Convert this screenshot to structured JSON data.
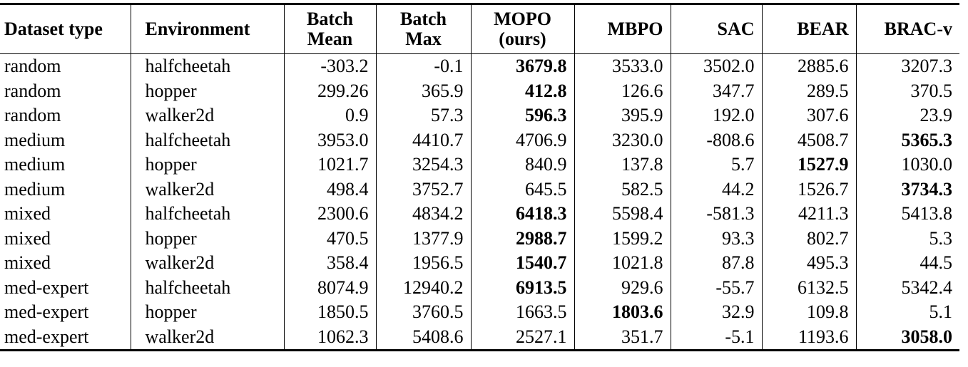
{
  "table": {
    "header": [
      [
        "Dataset type"
      ],
      [
        "Environment"
      ],
      [
        "Batch",
        "Mean"
      ],
      [
        "Batch",
        "Max"
      ],
      [
        "MOPO",
        "(ours)"
      ],
      [
        "MBPO"
      ],
      [
        "SAC"
      ],
      [
        "BEAR"
      ],
      [
        "BRAC-v"
      ]
    ],
    "rows": [
      [
        "random",
        "halfcheetah",
        "-303.2",
        "-0.1",
        "3679.8",
        "3533.0",
        "3502.0",
        "2885.6",
        "3207.3"
      ],
      [
        "random",
        "hopper",
        "299.26",
        "365.9",
        "412.8",
        "126.6",
        "347.7",
        "289.5",
        "370.5"
      ],
      [
        "random",
        "walker2d",
        "0.9",
        "57.3",
        "596.3",
        "395.9",
        "192.0",
        "307.6",
        "23.9"
      ],
      [
        "medium",
        "halfcheetah",
        "3953.0",
        "4410.7",
        "4706.9",
        "3230.0",
        "-808.6",
        "4508.7",
        "5365.3"
      ],
      [
        "medium",
        "hopper",
        "1021.7",
        "3254.3",
        "840.9",
        "137.8",
        "5.7",
        "1527.9",
        "1030.0"
      ],
      [
        "medium",
        "walker2d",
        "498.4",
        "3752.7",
        "645.5",
        "582.5",
        "44.2",
        "1526.7",
        "3734.3"
      ],
      [
        "mixed",
        "halfcheetah",
        "2300.6",
        "4834.2",
        "6418.3",
        "5598.4",
        "-581.3",
        "4211.3",
        "5413.8"
      ],
      [
        "mixed",
        "hopper",
        "470.5",
        "1377.9",
        "2988.7",
        "1599.2",
        "93.3",
        "802.7",
        "5.3"
      ],
      [
        "mixed",
        "walker2d",
        "358.4",
        "1956.5",
        "1540.7",
        "1021.8",
        "87.8",
        "495.3",
        "44.5"
      ],
      [
        "med-expert",
        "halfcheetah",
        "8074.9",
        "12940.2",
        "6913.5",
        "929.6",
        "-55.7",
        "6132.5",
        "5342.4"
      ],
      [
        "med-expert",
        "hopper",
        "1850.5",
        "3760.5",
        "1663.5",
        "1803.6",
        "32.9",
        "109.8",
        "5.1"
      ],
      [
        "med-expert",
        "walker2d",
        "1062.3",
        "5408.6",
        "2527.1",
        "351.7",
        "-5.1",
        "1193.6",
        "3058.0"
      ]
    ],
    "bold_cells": [
      [
        0,
        4
      ],
      [
        1,
        4
      ],
      [
        2,
        4
      ],
      [
        3,
        8
      ],
      [
        4,
        7
      ],
      [
        5,
        8
      ],
      [
        6,
        4
      ],
      [
        7,
        4
      ],
      [
        8,
        4
      ],
      [
        9,
        4
      ],
      [
        10,
        5
      ],
      [
        11,
        8
      ]
    ]
  }
}
